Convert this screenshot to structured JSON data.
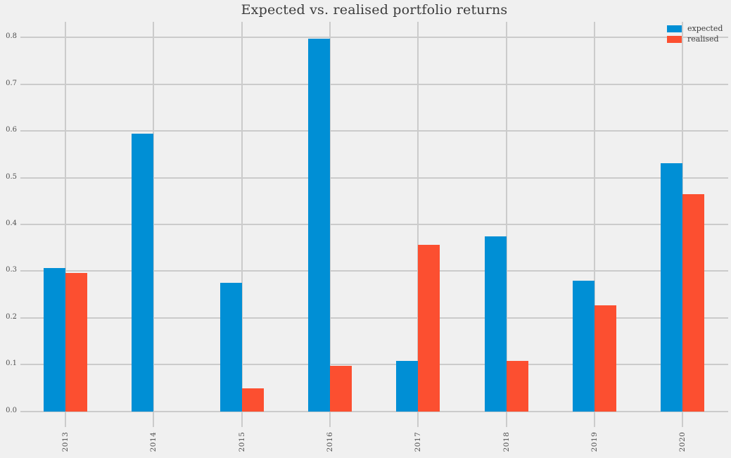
{
  "chart_data": {
    "type": "bar",
    "title": "Expected vs. realised portfolio returns",
    "categories": [
      "2013",
      "2014",
      "2015",
      "2016",
      "2017",
      "2018",
      "2019",
      "2020"
    ],
    "series": [
      {
        "name": "expected",
        "color": "#008fd5",
        "values": [
          0.307,
          0.594,
          0.275,
          0.797,
          0.107,
          0.375,
          0.279,
          0.531
        ]
      },
      {
        "name": "realised",
        "color": "#fc4f30",
        "values": [
          0.296,
          0.0,
          0.049,
          0.097,
          0.356,
          0.107,
          0.226,
          0.465
        ]
      }
    ],
    "xlabel": "",
    "ylabel": "",
    "ylim": [
      0.0,
      0.833
    ],
    "yticks": [
      "0.0",
      "0.1",
      "0.2",
      "0.3",
      "0.4",
      "0.5",
      "0.6",
      "0.7",
      "0.8"
    ],
    "grid": true,
    "legend_position": "upper right",
    "colors": {
      "background": "#f0f0f0",
      "gridline": "#cbcbcb",
      "title_text": "#3b3b3b",
      "tick_text": "#4f4f4f"
    }
  }
}
